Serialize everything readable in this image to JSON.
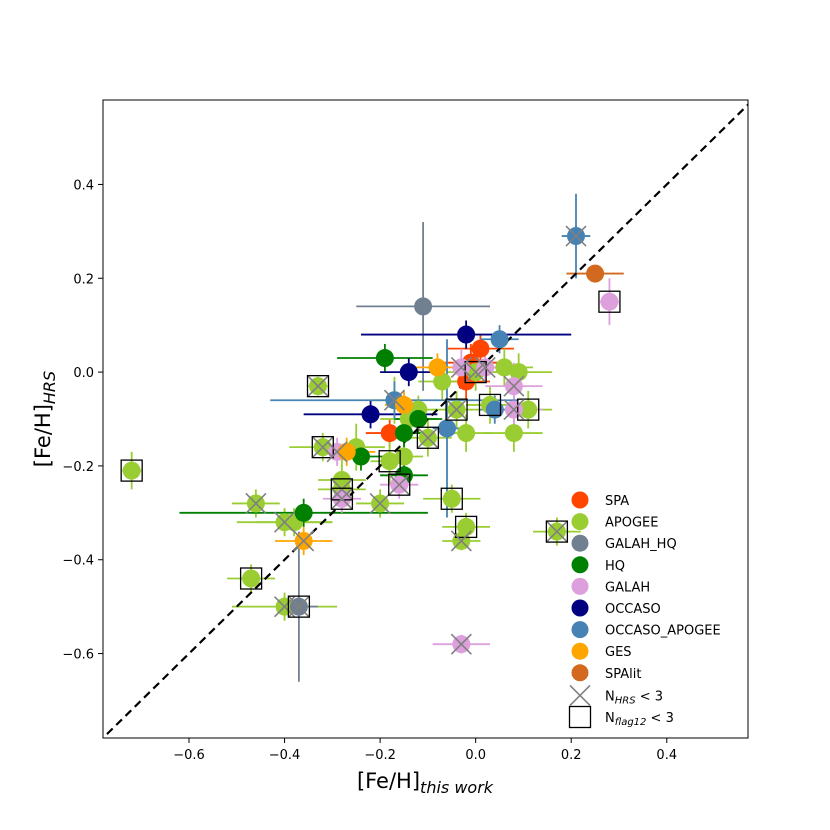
{
  "chart_data": {
    "type": "scatter",
    "xlabel": "[Fe/H]",
    "xlabel_sub": "this work",
    "ylabel": "[Fe/H]",
    "ylabel_sub": "HRS",
    "xlim": [
      -0.78,
      0.57
    ],
    "ylim": [
      -0.78,
      0.58
    ],
    "xticks": [
      "-0.6",
      "-0.4",
      "-0.2",
      "0.0",
      "0.2",
      "0.4"
    ],
    "yticks": [
      "-0.6",
      "-0.4",
      "-0.2",
      "0.0",
      "0.2",
      "0.4"
    ],
    "reference_line": "1:1",
    "grid": false,
    "legend_position": "lower-right",
    "series": [
      {
        "name": "SPA",
        "color": "#ff4500",
        "points": [
          {
            "x": 0.01,
            "y": 0.05,
            "xerr": 0.07,
            "yerr": 0.03
          },
          {
            "x": -0.01,
            "y": 0.02,
            "xerr": 0.07,
            "yerr": 0.04
          },
          {
            "x": -0.02,
            "y": -0.02,
            "xerr": 0.05,
            "yerr": 0.04
          },
          {
            "x": -0.18,
            "y": -0.13,
            "xerr": 0.05,
            "yerr": 0.03
          }
        ]
      },
      {
        "name": "APOGEE",
        "color": "#9acd32",
        "points": [
          {
            "x": -0.72,
            "y": -0.21,
            "xerr": 0.02,
            "yerr": 0.04,
            "sq": true
          },
          {
            "x": -0.47,
            "y": -0.44,
            "xerr": 0.05,
            "yerr": 0.03,
            "sq": true
          },
          {
            "x": -0.46,
            "y": -0.28,
            "xerr": 0.05,
            "yerr": 0.03,
            "cx": true
          },
          {
            "x": -0.4,
            "y": -0.32,
            "xerr": 0.1,
            "yerr": 0.03,
            "cx": true
          },
          {
            "x": -0.38,
            "y": -0.32,
            "xerr": 0.08,
            "yerr": 0.03
          },
          {
            "x": -0.4,
            "y": -0.5,
            "xerr": 0.11,
            "yerr": 0.03,
            "cx": true
          },
          {
            "x": -0.33,
            "y": -0.03,
            "xerr": 0.02,
            "yerr": 0.02,
            "cx": true,
            "sq": true
          },
          {
            "x": -0.32,
            "y": -0.16,
            "xerr": 0.07,
            "yerr": 0.03,
            "cx": true,
            "sq": true
          },
          {
            "x": -0.28,
            "y": -0.23,
            "xerr": 0.05,
            "yerr": 0.05
          },
          {
            "x": -0.28,
            "y": -0.25,
            "xerr": 0.05,
            "yerr": 0.03,
            "cx": true,
            "sq": true
          },
          {
            "x": -0.25,
            "y": -0.16,
            "xerr": 0.06,
            "yerr": 0.05
          },
          {
            "x": -0.2,
            "y": -0.28,
            "xerr": 0.05,
            "yerr": 0.03,
            "cx": true
          },
          {
            "x": -0.18,
            "y": -0.19,
            "xerr": 0.04,
            "yerr": 0.05,
            "sq": true
          },
          {
            "x": -0.15,
            "y": -0.18,
            "xerr": 0.04,
            "yerr": 0.04
          },
          {
            "x": -0.17,
            "y": -0.06,
            "xerr": 0.05,
            "yerr": 0.05
          },
          {
            "x": -0.14,
            "y": -0.1,
            "xerr": 0.06,
            "yerr": 0.04
          },
          {
            "x": -0.12,
            "y": -0.08,
            "xerr": 0.04,
            "yerr": 0.03
          },
          {
            "x": -0.1,
            "y": -0.14,
            "xerr": 0.05,
            "yerr": 0.04,
            "cx": true,
            "sq": true
          },
          {
            "x": -0.07,
            "y": -0.02,
            "xerr": 0.05,
            "yerr": 0.04
          },
          {
            "x": -0.05,
            "y": -0.27,
            "xerr": 0.06,
            "yerr": 0.03,
            "sq": true
          },
          {
            "x": -0.04,
            "y": -0.08,
            "xerr": 0.05,
            "yerr": 0.04,
            "cx": true,
            "sq": true
          },
          {
            "x": -0.02,
            "y": -0.33,
            "xerr": 0.05,
            "yerr": 0.03,
            "sq": true
          },
          {
            "x": -0.02,
            "y": -0.13,
            "xerr": 0.05,
            "yerr": 0.04
          },
          {
            "x": -0.03,
            "y": -0.36,
            "xerr": 0.04,
            "yerr": 0.02,
            "cx": true
          },
          {
            "x": 0.0,
            "y": 0.0,
            "xerr": 0.06,
            "yerr": 0.04,
            "cx": true,
            "sq": true
          },
          {
            "x": 0.03,
            "y": -0.07,
            "xerr": 0.05,
            "yerr": 0.04,
            "sq": true
          },
          {
            "x": 0.06,
            "y": 0.01,
            "xerr": 0.06,
            "yerr": 0.04
          },
          {
            "x": 0.08,
            "y": -0.13,
            "xerr": 0.06,
            "yerr": 0.04
          },
          {
            "x": 0.09,
            "y": 0.0,
            "xerr": 0.07,
            "yerr": 0.04
          },
          {
            "x": 0.11,
            "y": -0.08,
            "xerr": 0.05,
            "yerr": 0.04,
            "sq": true
          },
          {
            "x": 0.17,
            "y": -0.34,
            "xerr": 0.05,
            "yerr": 0.03,
            "cx": true,
            "sq": true
          }
        ]
      },
      {
        "name": "GALAH_HQ",
        "color": "#708090",
        "points": [
          {
            "x": -0.11,
            "y": 0.14,
            "xerr": 0.14,
            "yerr": 0.18
          },
          {
            "x": -0.37,
            "y": -0.5,
            "xerr": 0.04,
            "yerr": 0.16,
            "cx": true,
            "sq": true
          }
        ]
      },
      {
        "name": "HQ",
        "color": "#008000",
        "points": [
          {
            "x": -0.19,
            "y": 0.03,
            "xerr": 0.1,
            "yerr": 0.03
          },
          {
            "x": -0.36,
            "y": -0.3,
            "xerr": 0.26,
            "yerr": 0.03
          },
          {
            "x": -0.24,
            "y": -0.18,
            "xerr": 0.05,
            "yerr": 0.03
          },
          {
            "x": -0.15,
            "y": -0.22,
            "xerr": 0.05,
            "yerr": 0.03
          },
          {
            "x": -0.15,
            "y": -0.13,
            "xerr": 0.04,
            "yerr": 0.03
          },
          {
            "x": -0.12,
            "y": -0.1,
            "xerr": 0.05,
            "yerr": 0.03
          }
        ]
      },
      {
        "name": "GALAH",
        "color": "#dda0dd",
        "points": [
          {
            "x": 0.28,
            "y": 0.15,
            "xerr": 0.02,
            "yerr": 0.05,
            "sq": true
          },
          {
            "x": 0.08,
            "y": -0.03,
            "xerr": 0.06,
            "yerr": 0.05,
            "cx": true
          },
          {
            "x": 0.08,
            "y": -0.08,
            "xerr": 0.06,
            "yerr": 0.05,
            "cx": true
          },
          {
            "x": -0.03,
            "y": -0.58,
            "xerr": 0.06,
            "yerr": 0.02,
            "cx": true
          },
          {
            "x": -0.16,
            "y": -0.24,
            "xerr": 0.04,
            "yerr": 0.03,
            "cx": true,
            "sq": true
          },
          {
            "x": -0.28,
            "y": -0.27,
            "xerr": 0.04,
            "yerr": 0.03,
            "cx": true,
            "sq": true
          },
          {
            "x": -0.29,
            "y": -0.17,
            "xerr": 0.04,
            "yerr": 0.03,
            "cx": true
          },
          {
            "x": -0.03,
            "y": 0.01,
            "xerr": 0.05,
            "yerr": 0.04,
            "cx": true
          },
          {
            "x": 0.02,
            "y": 0.01,
            "xerr": 0.04,
            "yerr": 0.03,
            "cx": true
          }
        ]
      },
      {
        "name": "OCCASO",
        "color": "#000080",
        "points": [
          {
            "x": -0.02,
            "y": 0.08,
            "xerr": 0.22,
            "yerr": 0.03
          },
          {
            "x": -0.14,
            "y": 0.0,
            "xerr": 0.06,
            "yerr": 0.03
          },
          {
            "x": -0.22,
            "y": -0.09,
            "xerr": 0.14,
            "yerr": 0.03
          }
        ]
      },
      {
        "name": "OCCASO_APOGEE",
        "color": "#4682b4",
        "points": [
          {
            "x": 0.21,
            "y": 0.29,
            "xerr": 0.03,
            "yerr": 0.09,
            "cx": true
          },
          {
            "x": 0.05,
            "y": 0.07,
            "xerr": 0.04,
            "yerr": 0.03
          },
          {
            "x": -0.17,
            "y": -0.06,
            "xerr": 0.26,
            "yerr": 0.04,
            "cx": true
          },
          {
            "x": -0.06,
            "y": -0.12,
            "xerr": 0.03,
            "yerr": 0.19
          },
          {
            "x": 0.04,
            "y": -0.08,
            "xerr": 0.03,
            "yerr": 0.03
          }
        ]
      },
      {
        "name": "GES",
        "color": "#ffa500",
        "points": [
          {
            "x": -0.36,
            "y": -0.36,
            "xerr": 0.06,
            "yerr": 0.03,
            "cx": true
          },
          {
            "x": -0.27,
            "y": -0.17,
            "xerr": 0.06,
            "yerr": 0.03
          },
          {
            "x": -0.08,
            "y": 0.01,
            "xerr": 0.05,
            "yerr": 0.03
          },
          {
            "x": -0.15,
            "y": -0.07,
            "xerr": 0.04,
            "yerr": 0.03
          }
        ]
      },
      {
        "name": "SPAlit",
        "color": "#d2691e",
        "points": [
          {
            "x": 0.25,
            "y": 0.21,
            "xerr": 0.06,
            "yerr": 0.01
          }
        ]
      }
    ],
    "legend_extra": [
      {
        "marker": "cross",
        "label_main": "N",
        "label_sub": "HRS",
        "label_tail": " < 3"
      },
      {
        "marker": "square",
        "label_main": "N",
        "label_sub": "flag12",
        "label_tail": " < 3"
      }
    ]
  }
}
